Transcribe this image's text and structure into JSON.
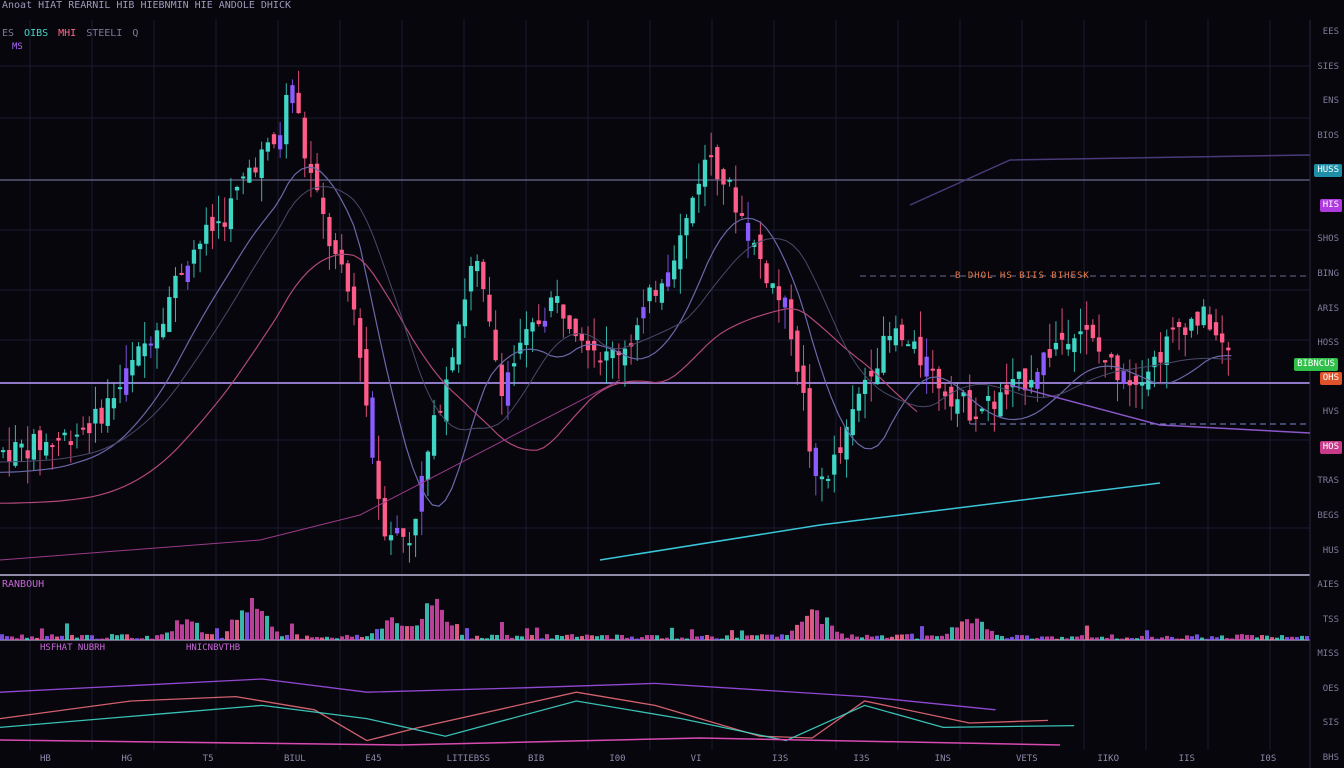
{
  "header": {
    "title": "Anoat HIAT REARNIL HIB HIEBNMIN HIE ANDOLE DHICK",
    "toolbar": [
      "ES",
      "OIBS",
      "MHI",
      "STEELI",
      "Q"
    ],
    "sub_tag": "MS"
  },
  "price_axis_labels": [
    {
      "text": "EES",
      "style": "text"
    },
    {
      "text": "SIES",
      "style": "text"
    },
    {
      "text": "ENS",
      "style": "text"
    },
    {
      "text": "BIOS",
      "style": "text"
    },
    {
      "text": "HUSS",
      "style": "tag-teal"
    },
    {
      "text": "HIS",
      "style": "tag-purple"
    },
    {
      "text": "SHOS",
      "style": "text"
    },
    {
      "text": "BING",
      "style": "text"
    },
    {
      "text": "ARIS",
      "style": "text"
    },
    {
      "text": "HOSS",
      "style": "text"
    },
    {
      "text": "OHS",
      "style": "tag-orange"
    },
    {
      "text": "HVS",
      "style": "text"
    },
    {
      "text": "HOS",
      "style": "tag-pink"
    },
    {
      "text": "TRAS",
      "style": "text"
    },
    {
      "text": "BEGS",
      "style": "text"
    },
    {
      "text": "HUS",
      "style": "text"
    },
    {
      "text": "AIES",
      "style": "text"
    },
    {
      "text": "TSS",
      "style": "text"
    },
    {
      "text": "MISS",
      "style": "text"
    },
    {
      "text": "OES",
      "style": "text"
    },
    {
      "text": "SIS",
      "style": "text"
    },
    {
      "text": "BHS",
      "style": "text"
    }
  ],
  "current_price_tag": "BIBNCUS",
  "annotation": "B DHOL HS BIIS BIHESK",
  "volume_label": "RANBOUH",
  "osc_labels": [
    "HSFHAT NUBRH",
    "HNICNBVTHB"
  ],
  "x_labels": [
    "HB",
    "HG",
    "T5",
    "BIUL",
    "E45",
    "LITIEBSS",
    "BIB",
    "I00",
    "VI",
    "I3S",
    "I3S",
    "INS",
    "VETS",
    "IIKO",
    "IIS",
    "I0S"
  ],
  "colors": {
    "background": "#07060d",
    "bull": "#3fd6c6",
    "bear": "#ff5c8a",
    "purple": "#8a5cff",
    "magenta": "#d84ab0",
    "grid": "#1a1930",
    "separator": "#8f8ca8"
  },
  "chart_data": {
    "type": "candlestick",
    "title": "",
    "xlabel": "",
    "ylabel": "",
    "ylim": [
      0,
      100
    ],
    "close_path": [
      [
        0,
        22
      ],
      [
        4,
        24
      ],
      [
        7,
        28
      ],
      [
        9,
        35
      ],
      [
        12,
        48
      ],
      [
        14,
        60
      ],
      [
        17,
        68
      ],
      [
        19,
        78
      ],
      [
        21,
        82
      ],
      [
        22,
        95
      ],
      [
        23,
        80
      ],
      [
        25,
        62
      ],
      [
        27,
        48
      ],
      [
        28,
        25
      ],
      [
        29,
        8
      ],
      [
        31,
        5
      ],
      [
        33,
        28
      ],
      [
        35,
        50
      ],
      [
        36,
        60
      ],
      [
        38,
        35
      ],
      [
        40,
        44
      ],
      [
        42,
        52
      ],
      [
        44,
        46
      ],
      [
        46,
        40
      ],
      [
        48,
        44
      ],
      [
        50,
        55
      ],
      [
        52,
        65
      ],
      [
        53,
        75
      ],
      [
        54,
        80
      ],
      [
        56,
        70
      ],
      [
        58,
        58
      ],
      [
        60,
        48
      ],
      [
        61,
        34
      ],
      [
        62,
        15
      ],
      [
        64,
        22
      ],
      [
        66,
        38
      ],
      [
        68,
        45
      ],
      [
        70,
        40
      ],
      [
        72,
        34
      ],
      [
        74,
        30
      ],
      [
        76,
        32
      ],
      [
        78,
        36
      ],
      [
        80,
        42
      ],
      [
        82,
        47
      ],
      [
        84,
        40
      ],
      [
        86,
        36
      ],
      [
        88,
        40
      ],
      [
        90,
        47
      ],
      [
        92,
        48
      ],
      [
        93,
        42
      ],
      [
        94,
        40
      ]
    ],
    "volume_profile": [
      [
        14,
        40
      ],
      [
        19,
        75
      ],
      [
        30,
        45
      ],
      [
        33,
        75
      ],
      [
        62,
        55
      ],
      [
        74,
        45
      ]
    ],
    "oscillator_paths": [
      [
        [
          0,
          30
        ],
        [
          10,
          50
        ],
        [
          18,
          55
        ],
        [
          24,
          40
        ],
        [
          28,
          5
        ],
        [
          32,
          20
        ],
        [
          44,
          60
        ],
        [
          50,
          45
        ],
        [
          58,
          10
        ],
        [
          62,
          8
        ],
        [
          66,
          50
        ],
        [
          74,
          25
        ],
        [
          80,
          28
        ]
      ],
      [
        [
          0,
          20
        ],
        [
          12,
          35
        ],
        [
          20,
          45
        ],
        [
          28,
          30
        ],
        [
          34,
          10
        ],
        [
          44,
          50
        ],
        [
          52,
          30
        ],
        [
          60,
          5
        ],
        [
          66,
          45
        ],
        [
          72,
          20
        ],
        [
          82,
          22
        ]
      ],
      [
        [
          0,
          60
        ],
        [
          20,
          75
        ],
        [
          28,
          60
        ],
        [
          40,
          65
        ],
        [
          50,
          70
        ],
        [
          66,
          55
        ],
        [
          76,
          40
        ]
      ]
    ]
  }
}
